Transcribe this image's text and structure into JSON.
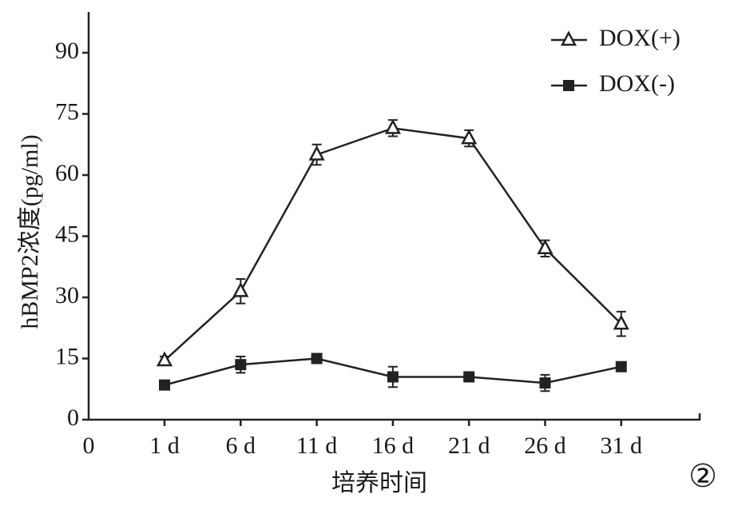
{
  "chart_data": {
    "type": "line",
    "x_label": "培养时间",
    "y_label": "hBMP2浓度(pg/ml)",
    "x_origin_label": "0",
    "panel_label": "②",
    "categories": [
      "1 d",
      "6 d",
      "11 d",
      "16 d",
      "21 d",
      "26 d",
      "31 d"
    ],
    "series": [
      {
        "name": "DOX(+)",
        "color": "#222222",
        "marker": "triangle-open",
        "values": [
          14.5,
          31.5,
          65,
          71.5,
          69,
          42,
          23.5
        ],
        "errors": [
          1,
          3,
          2.5,
          2,
          2,
          2,
          3
        ]
      },
      {
        "name": "DOX(-)",
        "color": "#222222",
        "marker": "square-filled",
        "values": [
          8.5,
          13.5,
          15,
          10.5,
          10.5,
          9,
          13
        ],
        "errors": [
          1,
          2,
          1,
          2.5,
          1,
          2,
          1
        ]
      }
    ],
    "ylim": [
      0,
      100
    ],
    "yticks": [
      0,
      15,
      30,
      45,
      60,
      75,
      90
    ],
    "legend": "upper right"
  }
}
